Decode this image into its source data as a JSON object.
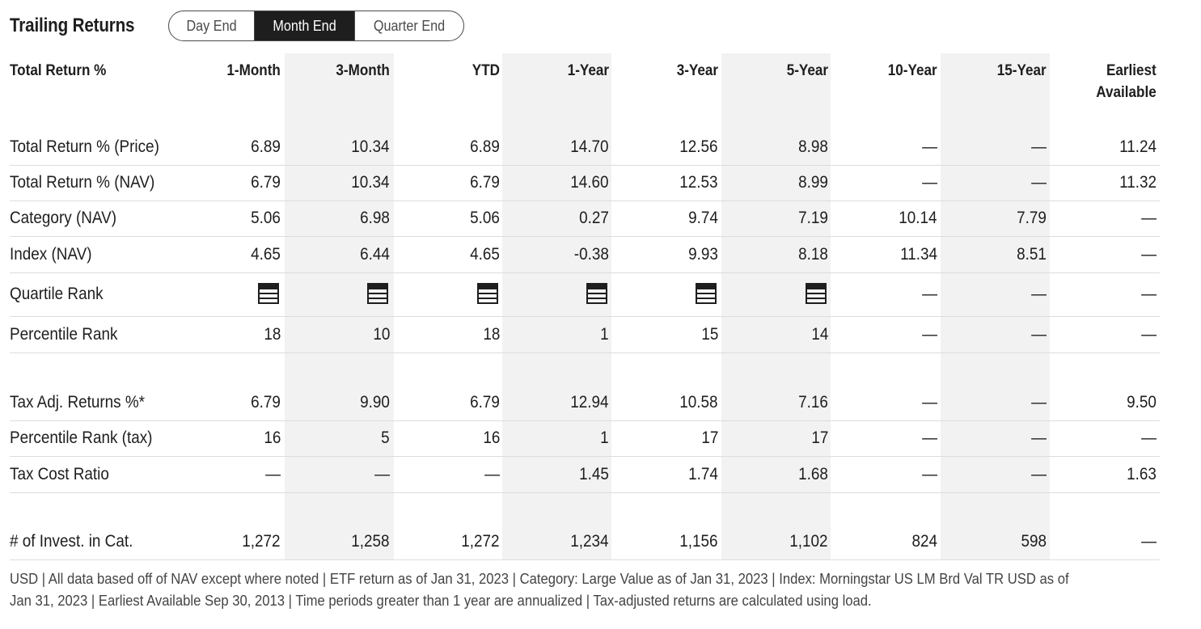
{
  "title": "Trailing Returns",
  "toggle": {
    "options": [
      "Day End",
      "Month End",
      "Quarter End"
    ],
    "active": "Month End"
  },
  "table": {
    "first_header": "Total Return %",
    "headers": [
      "1-Month",
      "3-Month",
      "YTD",
      "1-Year",
      "3-Year",
      "5-Year",
      "10-Year",
      "15-Year",
      "Earliest\nAvailable"
    ],
    "rows": [
      {
        "label": "Total Return % (Price)",
        "values": [
          "6.89",
          "10.34",
          "6.89",
          "14.70",
          "12.56",
          "8.98",
          "—",
          "—",
          "11.24"
        ]
      },
      {
        "label": "Total Return % (NAV)",
        "values": [
          "6.79",
          "10.34",
          "6.79",
          "14.60",
          "12.53",
          "8.99",
          "—",
          "—",
          "11.32"
        ]
      },
      {
        "label": "Category (NAV)",
        "values": [
          "5.06",
          "6.98",
          "5.06",
          "0.27",
          "9.74",
          "7.19",
          "10.14",
          "7.79",
          "—"
        ]
      },
      {
        "label": "Index (NAV)",
        "values": [
          "4.65",
          "6.44",
          "4.65",
          "-0.38",
          "9.93",
          "8.18",
          "11.34",
          "8.51",
          "—"
        ]
      },
      {
        "label": "Quartile Rank",
        "values": [
          "quartile-1",
          "quartile-1",
          "quartile-1",
          "quartile-1",
          "quartile-1",
          "quartile-1",
          "—",
          "—",
          "—"
        ]
      },
      {
        "label": "Percentile Rank",
        "values": [
          "18",
          "10",
          "18",
          "1",
          "15",
          "14",
          "—",
          "—",
          "—"
        ]
      },
      {
        "label": "Tax Adj. Returns %*",
        "values": [
          "6.79",
          "9.90",
          "6.79",
          "12.94",
          "10.58",
          "7.16",
          "—",
          "—",
          "9.50"
        ]
      },
      {
        "label": "Percentile Rank (tax)",
        "values": [
          "16",
          "5",
          "16",
          "1",
          "17",
          "17",
          "—",
          "—",
          "—"
        ]
      },
      {
        "label": "Tax Cost Ratio",
        "values": [
          "—",
          "—",
          "—",
          "1.45",
          "1.74",
          "1.68",
          "—",
          "—",
          "1.63"
        ]
      },
      {
        "label": "# of Invest. in Cat.",
        "values": [
          "1,272",
          "1,258",
          "1,272",
          "1,234",
          "1,156",
          "1,102",
          "824",
          "598",
          "—"
        ]
      }
    ]
  },
  "footnote": "USD | All data based off of NAV except where noted | ETF return as of Jan 31, 2023 |  Category: Large Value as of Jan 31, 2023 |  Index: Morningstar US LM Brd Val TR USD as of Jan 31, 2023 |  Earliest Available Sep 30, 2013 |  Time periods greater than 1 year are annualized  | Tax-adjusted returns are calculated using load.",
  "colors": {
    "text": "#1e1e1e",
    "shade": "#f2f2f2",
    "divider": "#dcdcdc",
    "active_toggle": "#1e1e1e"
  }
}
